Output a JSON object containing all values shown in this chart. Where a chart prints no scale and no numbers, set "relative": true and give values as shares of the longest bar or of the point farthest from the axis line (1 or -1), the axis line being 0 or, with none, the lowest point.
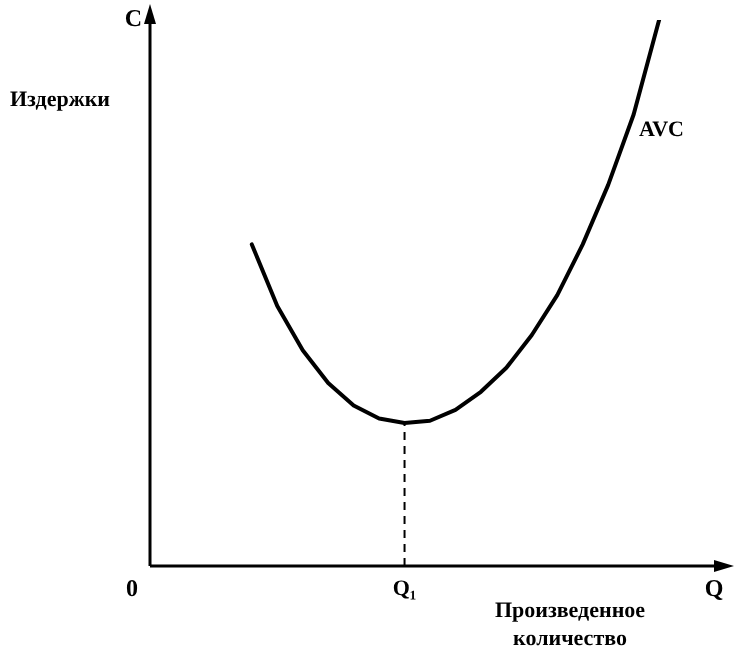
{
  "chart_data": {
    "type": "line",
    "relative": true,
    "ylabel": "Издержки",
    "xlabel": "Произведенное количество",
    "annotations": [
      "C",
      "Q",
      "0",
      {
        "text": "Q₁",
        "y": 0.262
      }
    ],
    "categories": [
      null,
      null,
      null,
      null,
      null,
      null,
      null,
      null,
      null,
      null,
      null,
      null,
      null,
      null,
      null,
      null,
      null,
      null,
      null,
      null,
      null,
      null,
      null
    ],
    "series": [
      {
        "name": "AVC",
        "color": "#000000",
        "values": [
          null,
          null,
          null,
          null,
          0.589,
          0.476,
          0.395,
          0.335,
          0.294,
          0.27,
          0.262,
          0.266,
          0.286,
          0.319,
          0.363,
          0.423,
          0.496,
          0.589,
          0.698,
          0.827,
          1,
          null,
          null
        ]
      }
    ],
    "legend": false,
    "marker": "none",
    "line_style": "solid",
    "grid": false
  }
}
